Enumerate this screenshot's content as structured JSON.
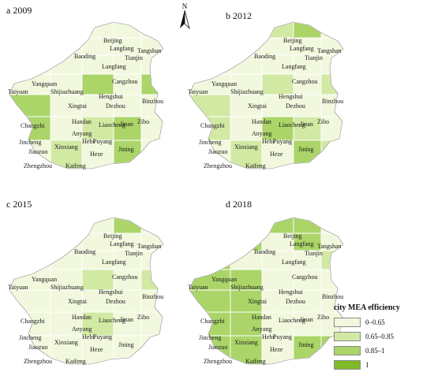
{
  "panels": [
    {
      "label": "a 2009",
      "cells": [
        1,
        3,
        1,
        1,
        1,
        2,
        1,
        1,
        1,
        1,
        1,
        1,
        1,
        1,
        1,
        1,
        1,
        3,
        1,
        3,
        3,
        1,
        1,
        1,
        1,
        3,
        1,
        2,
        3,
        1,
        1,
        2
      ]
    },
    {
      "label": "b 2012",
      "cells": [
        1,
        3,
        2,
        3,
        1,
        1,
        1,
        1,
        1,
        1,
        1,
        1,
        1,
        1,
        1,
        1,
        1,
        2,
        1,
        2,
        2,
        1,
        1,
        1,
        1,
        2,
        1,
        3,
        2,
        1,
        1,
        2
      ]
    },
    {
      "label": "c 2015",
      "cells": [
        1,
        1,
        1,
        3,
        1,
        1,
        1,
        1,
        1,
        1,
        1,
        1,
        1,
        1,
        1,
        1,
        1,
        2,
        1,
        2,
        1,
        1,
        1,
        1,
        1,
        1,
        1,
        2,
        1,
        1,
        1,
        1
      ]
    },
    {
      "label": "d 2018",
      "cells": [
        1,
        3,
        3,
        3,
        1,
        3,
        3,
        1,
        3,
        1,
        3,
        1,
        1,
        1,
        2,
        3,
        3,
        1,
        1,
        1,
        3,
        3,
        1,
        1,
        1,
        3,
        3,
        1,
        1,
        1,
        3,
        3
      ]
    }
  ],
  "cities": [
    "Beijing",
    "Tangshan",
    "Langfang",
    "Tianjin",
    "Baoding",
    "Langfang",
    "Yangquan",
    "Shijiazhuang",
    "Cangzhou",
    "Taiyuan",
    "Hengshui",
    "Binzhou",
    "Xingtai",
    "Dezhou",
    "Changzhi",
    "Handan",
    "Liaocheng",
    "Jinan",
    "Zibo",
    "Anyang",
    "Hebi",
    "Puyang",
    "Jincheng",
    "Xinxiang",
    "Jiaozuo",
    "Heze",
    "Jining",
    "Zhengzhou",
    "Kaifeng"
  ],
  "north_label": "N",
  "legend": {
    "title": "city MEA efficiency",
    "items": [
      {
        "label": "0–0.65",
        "color": "#f1f8dd"
      },
      {
        "label": "0.65–0.85",
        "color": "#d2e9a4"
      },
      {
        "label": "0.85–1",
        "color": "#abd568"
      },
      {
        "label": "1",
        "color": "#7fba28"
      }
    ]
  }
}
